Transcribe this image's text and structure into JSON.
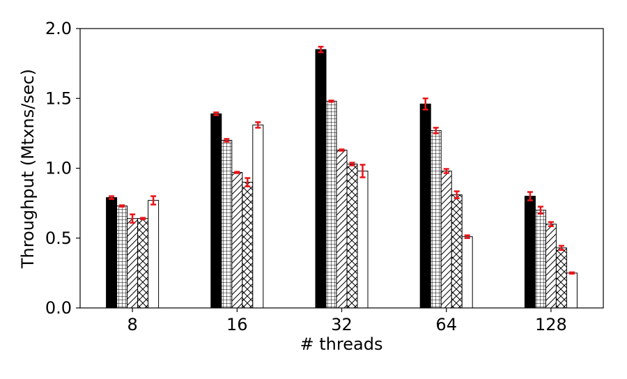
{
  "chart_data": {
    "type": "bar",
    "title": "",
    "xlabel": "# threads",
    "ylabel": "Throughput (Mtxns/sec)",
    "categories": [
      "8",
      "16",
      "32",
      "64",
      "128"
    ],
    "ylim": [
      0.0,
      2.0
    ],
    "yticks": [
      "0.0",
      "0.5",
      "1.0",
      "1.5",
      "2.0"
    ],
    "grid": false,
    "legend": "none",
    "error_bar_color": "#e8141a",
    "series": [
      {
        "pattern": "solid",
        "values": [
          0.79,
          1.39,
          1.85,
          1.46,
          0.8
        ],
        "errors": [
          0.01,
          0.01,
          0.02,
          0.04,
          0.03
        ]
      },
      {
        "pattern": "grid",
        "values": [
          0.73,
          1.2,
          1.48,
          1.27,
          0.7
        ],
        "errors": [
          0.005,
          0.01,
          0.005,
          0.02,
          0.025
        ]
      },
      {
        "pattern": "diagonal",
        "values": [
          0.64,
          0.97,
          1.13,
          0.98,
          0.6
        ],
        "errors": [
          0.03,
          0.005,
          0.005,
          0.015,
          0.015
        ]
      },
      {
        "pattern": "crosshatch",
        "values": [
          0.64,
          0.9,
          1.03,
          0.81,
          0.43
        ],
        "errors": [
          0.005,
          0.03,
          0.01,
          0.025,
          0.015
        ]
      },
      {
        "pattern": "empty",
        "values": [
          0.77,
          1.31,
          0.98,
          0.51,
          0.25
        ],
        "errors": [
          0.03,
          0.02,
          0.045,
          0.01,
          0.005
        ]
      }
    ]
  }
}
